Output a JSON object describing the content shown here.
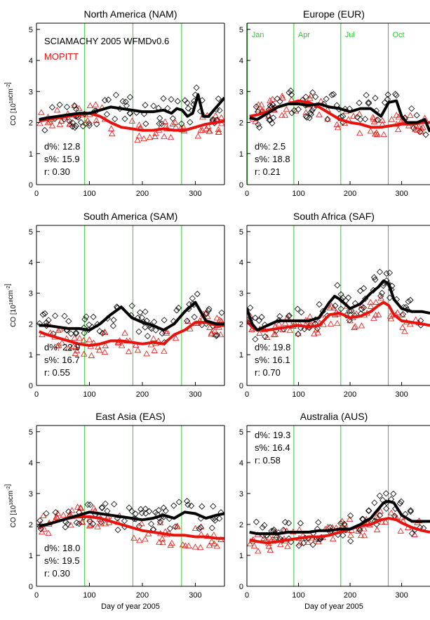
{
  "figure": {
    "ylabel_main": "CO [10",
    "ylabel_sup": "18",
    "ylabel_mid": "cm",
    "ylabel_sup2": "-2",
    "ylabel_end": "]",
    "xlabel": "Day of year 2005",
    "x_ticks": [
      "0",
      "100",
      "200",
      "300"
    ],
    "y_ticks": [
      "0",
      "1",
      "2",
      "3",
      "4",
      "5"
    ],
    "legend": {
      "sciamachy": "SCIAMACHY 2005 WFMDv0.6",
      "mopitt": "MOPITT"
    },
    "month_labels": [
      "Jan",
      "Apr",
      "Jul",
      "Oct"
    ],
    "colors": {
      "sciamachy": "#000000",
      "mopitt": "#e8120c",
      "month_lines": "#2ecc2e",
      "axes": "#000000"
    }
  },
  "chart_data": [
    {
      "type": "scatter",
      "title": "North America (NAM)",
      "xlabel": "",
      "ylabel": "CO [10^18 cm^-2]",
      "xlim": [
        0,
        355
      ],
      "ylim": [
        0,
        5.2
      ],
      "month_lines_x": [
        91,
        182,
        274
      ],
      "stats": {
        "d": "d%: 12.8",
        "s": "s%: 15.9",
        "r": "r:  0.30"
      },
      "stats_pos": "bottom-left",
      "series": [
        {
          "name": "SCIAMACHY 2005 WFMDv0.6",
          "kind": "line",
          "x": [
            5,
            20,
            40,
            60,
            80,
            100,
            120,
            140,
            160,
            180,
            200,
            220,
            240,
            255,
            265,
            275,
            285,
            295,
            305,
            315,
            325,
            335,
            345,
            355
          ],
          "y": [
            2.1,
            2.15,
            2.2,
            2.25,
            2.3,
            2.3,
            2.4,
            2.5,
            2.45,
            2.4,
            2.35,
            2.35,
            2.4,
            2.3,
            2.45,
            2.4,
            2.2,
            2.3,
            2.9,
            2.2,
            2.2,
            2.4,
            2.6,
            2.8
          ]
        },
        {
          "name": "MOPITT",
          "kind": "line",
          "x": [
            5,
            20,
            40,
            60,
            80,
            100,
            120,
            140,
            160,
            180,
            200,
            220,
            240,
            260,
            280,
            300,
            320,
            340,
            355
          ],
          "y": [
            2.05,
            2.1,
            2.15,
            2.2,
            2.25,
            2.3,
            2.2,
            2.0,
            1.85,
            1.8,
            1.75,
            1.75,
            1.8,
            1.75,
            1.75,
            1.85,
            1.95,
            2.0,
            2.05
          ]
        }
      ]
    },
    {
      "type": "scatter",
      "title": "Europe (EUR)",
      "xlabel": "",
      "ylabel": "",
      "xlim": [
        0,
        355
      ],
      "ylim": [
        0,
        5.2
      ],
      "month_lines_x": [
        1,
        91,
        182,
        274
      ],
      "stats": {
        "d": "d%:  2.5",
        "s": "s%: 18.8",
        "r": "r:  0.21"
      },
      "stats_pos": "bottom-left",
      "series": [
        {
          "name": "SCIAMACHY 2005 WFMDv0.6",
          "kind": "line",
          "x": [
            5,
            20,
            40,
            60,
            80,
            100,
            120,
            140,
            160,
            180,
            200,
            220,
            240,
            260,
            275,
            290,
            300,
            310,
            330,
            345,
            355
          ],
          "y": [
            2.15,
            2.1,
            2.3,
            2.5,
            2.6,
            2.6,
            2.55,
            2.6,
            2.5,
            2.45,
            2.35,
            2.45,
            2.45,
            2.2,
            2.65,
            2.7,
            2.2,
            2.0,
            2.0,
            2.1,
            1.7
          ]
        },
        {
          "name": "MOPITT",
          "kind": "line",
          "x": [
            5,
            20,
            40,
            60,
            80,
            100,
            120,
            140,
            160,
            180,
            200,
            220,
            240,
            260,
            280,
            300,
            320,
            340,
            355
          ],
          "y": [
            2.2,
            2.25,
            2.35,
            2.5,
            2.6,
            2.7,
            2.65,
            2.5,
            2.3,
            2.1,
            2.0,
            1.95,
            1.85,
            1.85,
            1.9,
            1.95,
            1.95,
            2.0,
            2.0
          ]
        }
      ]
    },
    {
      "type": "scatter",
      "title": "South America (SAM)",
      "xlabel": "",
      "ylabel": "CO [10^18 cm^-2]",
      "xlim": [
        0,
        355
      ],
      "ylim": [
        0,
        5.2
      ],
      "month_lines_x": [
        91,
        182,
        274
      ],
      "stats": {
        "d": "d%: 22.9",
        "s": "s%: 16.7",
        "r": "r:  0.55"
      },
      "stats_pos": "bottom-left",
      "series": [
        {
          "name": "SCIAMACHY 2005 WFMDv0.6",
          "kind": "line",
          "x": [
            5,
            20,
            40,
            60,
            80,
            100,
            120,
            140,
            160,
            180,
            200,
            220,
            240,
            260,
            280,
            300,
            320,
            340,
            355
          ],
          "y": [
            1.95,
            1.95,
            1.9,
            1.85,
            1.85,
            1.8,
            2.0,
            2.3,
            2.55,
            2.2,
            2.05,
            1.95,
            1.8,
            2.0,
            2.4,
            2.7,
            2.1,
            2.0,
            2.0
          ]
        },
        {
          "name": "MOPITT",
          "kind": "line",
          "x": [
            5,
            20,
            40,
            60,
            80,
            100,
            120,
            140,
            160,
            180,
            200,
            220,
            240,
            260,
            280,
            300,
            320,
            340,
            355
          ],
          "y": [
            1.75,
            1.65,
            1.55,
            1.45,
            1.35,
            1.3,
            1.35,
            1.45,
            1.45,
            1.4,
            1.35,
            1.4,
            1.35,
            1.65,
            1.8,
            2.05,
            2.05,
            1.95,
            1.95
          ]
        }
      ]
    },
    {
      "type": "scatter",
      "title": "South Africa (SAF)",
      "xlabel": "",
      "ylabel": "",
      "xlim": [
        0,
        355
      ],
      "ylim": [
        0,
        5.2
      ],
      "month_lines_x": [
        91,
        182,
        274
      ],
      "stats": {
        "d": "d%: 19.8",
        "s": "s%: 16.1",
        "r": "r:  0.70"
      },
      "stats_pos": "bottom-left",
      "series": [
        {
          "name": "SCIAMACHY 2005 WFMDv0.6",
          "kind": "line",
          "x": [
            0,
            10,
            20,
            40,
            60,
            80,
            100,
            120,
            140,
            160,
            170,
            180,
            200,
            220,
            240,
            255,
            265,
            275,
            285,
            300,
            320,
            340,
            355
          ],
          "y": [
            2.5,
            2.0,
            1.8,
            1.95,
            2.1,
            2.1,
            2.1,
            2.1,
            2.2,
            2.7,
            2.9,
            2.8,
            2.5,
            2.65,
            3.0,
            3.2,
            3.4,
            3.3,
            2.8,
            2.5,
            2.4,
            2.4,
            2.35
          ]
        },
        {
          "name": "MOPITT",
          "kind": "line",
          "x": [
            0,
            10,
            20,
            40,
            60,
            80,
            100,
            120,
            140,
            160,
            180,
            200,
            220,
            240,
            255,
            265,
            275,
            285,
            300,
            320,
            340,
            355
          ],
          "y": [
            2.1,
            1.9,
            1.8,
            1.8,
            1.85,
            1.9,
            1.95,
            1.9,
            1.95,
            2.3,
            2.35,
            2.2,
            2.25,
            2.4,
            2.6,
            2.7,
            2.6,
            2.3,
            2.1,
            2.05,
            2.0,
            1.95
          ]
        }
      ]
    },
    {
      "type": "scatter",
      "title": "East Asia (EAS)",
      "xlabel": "Day of year 2005",
      "ylabel": "CO [10^18 cm^-2]",
      "xlim": [
        0,
        355
      ],
      "ylim": [
        0,
        5.2
      ],
      "month_lines_x": [
        91,
        182,
        274
      ],
      "stats": {
        "d": "d%: 18.0",
        "s": "s%: 19.5",
        "r": "r:  0.30"
      },
      "stats_pos": "bottom-left",
      "series": [
        {
          "name": "SCIAMACHY 2005 WFMDv0.6",
          "kind": "line",
          "x": [
            5,
            20,
            40,
            60,
            80,
            100,
            120,
            140,
            160,
            180,
            200,
            220,
            240,
            260,
            280,
            300,
            320,
            340,
            355
          ],
          "y": [
            1.95,
            2.0,
            2.1,
            2.2,
            2.3,
            2.4,
            2.35,
            2.3,
            2.25,
            2.2,
            2.15,
            2.2,
            2.3,
            2.2,
            2.4,
            2.35,
            2.2,
            2.3,
            2.35
          ]
        },
        {
          "name": "MOPITT",
          "kind": "line",
          "x": [
            5,
            20,
            40,
            60,
            80,
            100,
            120,
            140,
            160,
            180,
            200,
            220,
            240,
            260,
            280,
            300,
            320,
            340,
            355
          ],
          "y": [
            1.9,
            2.0,
            2.1,
            2.2,
            2.25,
            2.25,
            2.2,
            2.1,
            2.0,
            1.9,
            1.8,
            1.75,
            1.7,
            1.65,
            1.65,
            1.6,
            1.6,
            1.55,
            1.55
          ]
        }
      ]
    },
    {
      "type": "scatter",
      "title": "Australia (AUS)",
      "xlabel": "Day of year 2005",
      "ylabel": "",
      "xlim": [
        0,
        355
      ],
      "ylim": [
        0,
        5.2
      ],
      "month_lines_x": [
        91,
        182,
        274
      ],
      "stats": {
        "d": "d%: 19.3",
        "s": "s%: 16.4",
        "r": "r:  0.58"
      },
      "stats_pos": "top-left",
      "series": [
        {
          "name": "SCIAMACHY 2005 WFMDv0.6",
          "kind": "line",
          "x": [
            5,
            20,
            40,
            60,
            80,
            100,
            120,
            140,
            160,
            180,
            200,
            220,
            240,
            255,
            265,
            275,
            285,
            300,
            320,
            340,
            355
          ],
          "y": [
            1.75,
            1.7,
            1.7,
            1.7,
            1.75,
            1.75,
            1.75,
            1.8,
            1.8,
            1.85,
            1.85,
            2.0,
            2.2,
            2.5,
            2.7,
            2.75,
            2.7,
            2.3,
            2.1,
            2.1,
            2.1
          ]
        },
        {
          "name": "MOPITT",
          "kind": "line",
          "x": [
            5,
            20,
            40,
            60,
            80,
            100,
            120,
            140,
            160,
            180,
            200,
            220,
            240,
            260,
            275,
            290,
            300,
            320,
            340,
            355
          ],
          "y": [
            1.5,
            1.45,
            1.4,
            1.45,
            1.5,
            1.55,
            1.6,
            1.6,
            1.65,
            1.75,
            1.85,
            1.95,
            2.0,
            2.15,
            2.2,
            2.15,
            2.05,
            1.9,
            1.8,
            1.75
          ]
        }
      ]
    }
  ]
}
